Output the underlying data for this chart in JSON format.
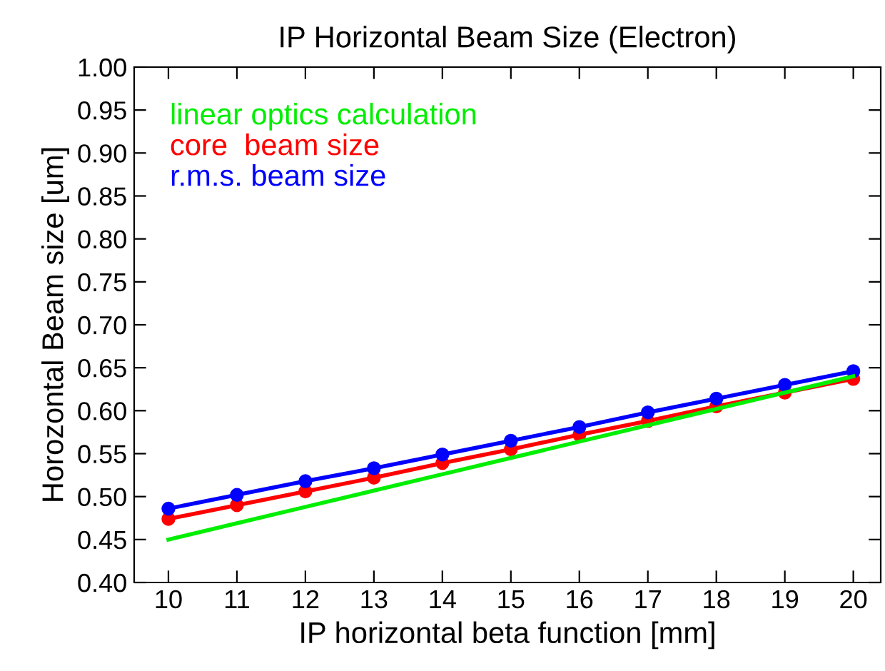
{
  "chart_data": {
    "type": "line",
    "title": "IP Horizontal Beam Size (Electron)",
    "xlabel": "IP horizontal beta function [mm]",
    "ylabel": "Horozontal Beam size [um]",
    "x": [
      10,
      11,
      12,
      13,
      14,
      15,
      16,
      17,
      18,
      19,
      20
    ],
    "series": [
      {
        "name": "linear optics calculation",
        "color": "#00ee00",
        "marker": "none",
        "values": [
          0.45,
          0.469,
          0.488,
          0.507,
          0.526,
          0.545,
          0.564,
          0.583,
          0.602,
          0.621,
          0.64
        ]
      },
      {
        "name": "core  beam size",
        "color": "#ff0000",
        "marker": "circle",
        "values": [
          0.474,
          0.49,
          0.506,
          0.522,
          0.539,
          0.555,
          0.572,
          0.588,
          0.605,
          0.621,
          0.637
        ]
      },
      {
        "name": "r.m.s. beam size",
        "color": "#0000ff",
        "marker": "circle",
        "values": [
          0.486,
          0.502,
          0.518,
          0.533,
          0.549,
          0.565,
          0.581,
          0.598,
          0.614,
          0.63,
          0.646
        ]
      }
    ],
    "xlim": [
      9.5,
      20.4
    ],
    "xticks": [
      10,
      11,
      12,
      13,
      14,
      15,
      16,
      17,
      18,
      19,
      20
    ],
    "ylim": [
      0.4,
      1.0
    ],
    "yticks": [
      {
        "value": 0.4,
        "label": "0.40"
      },
      {
        "value": 0.45,
        "label": "0.45"
      },
      {
        "value": 0.5,
        "label": "0.50"
      },
      {
        "value": 0.55,
        "label": "0.55"
      },
      {
        "value": 0.6,
        "label": "0.60"
      },
      {
        "value": 0.65,
        "label": "0.65"
      },
      {
        "value": 0.7,
        "label": "0.70"
      },
      {
        "value": 0.75,
        "label": "0.75"
      },
      {
        "value": 0.8,
        "label": "0.80"
      },
      {
        "value": 0.85,
        "label": "0.85"
      },
      {
        "value": 0.9,
        "label": "0.90"
      },
      {
        "value": 0.95,
        "label": "0.95"
      },
      {
        "value": 1.0,
        "label": "1.00"
      }
    ],
    "grid": false,
    "legend": "top left",
    "line_style": "solid"
  }
}
